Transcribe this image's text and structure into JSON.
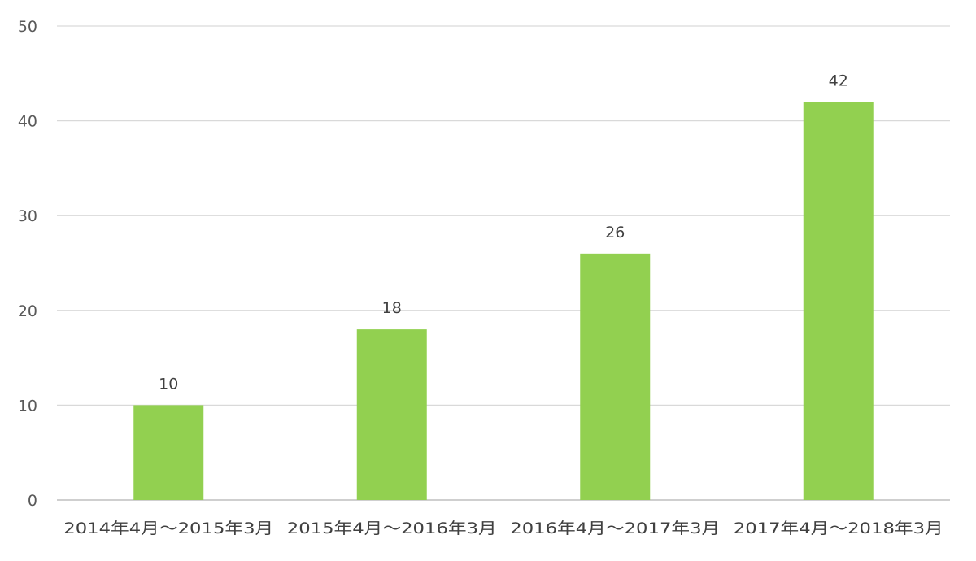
{
  "chart_data": {
    "type": "bar",
    "categories": [
      "2014年4月～2015年3月",
      "2015年4月～2016年3月",
      "2016年4月～2017年3月",
      "2017年4月～2018年3月"
    ],
    "values": [
      10,
      18,
      26,
      42
    ],
    "data_labels": [
      "10",
      "18",
      "26",
      "42"
    ],
    "title": "",
    "xlabel": "",
    "ylabel": "",
    "ylim": [
      0,
      50
    ],
    "yticks": [
      0,
      10,
      20,
      30,
      40,
      50
    ],
    "ytick_labels": [
      "0",
      "10",
      "20",
      "30",
      "40",
      "50"
    ],
    "grid": true,
    "legend": "none",
    "colors": {
      "bar": "#92d050",
      "grid": "#d9d9d9",
      "text": "#404040"
    }
  }
}
